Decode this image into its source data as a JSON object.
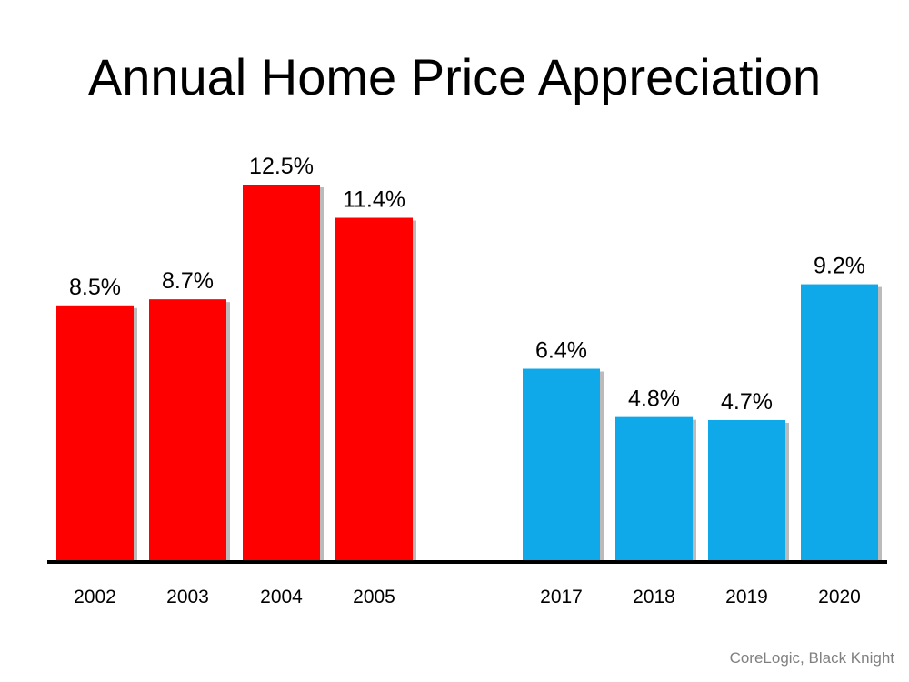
{
  "chart_data": {
    "type": "bar",
    "title": "Annual Home Price Appreciation",
    "categories": [
      "2002",
      "2003",
      "2004",
      "2005",
      "2017",
      "2018",
      "2019",
      "2020"
    ],
    "values": [
      8.5,
      8.7,
      12.5,
      11.4,
      6.4,
      4.8,
      4.7,
      9.2
    ],
    "data_labels": [
      "8.5%",
      "8.7%",
      "12.5%",
      "11.4%",
      "6.4%",
      "4.8%",
      "4.7%",
      "9.2%"
    ],
    "bar_colors": [
      "#ff0000",
      "#ff0000",
      "#ff0000",
      "#ff0000",
      "#0fa9e9",
      "#0fa9e9",
      "#0fa9e9",
      "#0fa9e9"
    ],
    "ylim": [
      0,
      12.5
    ],
    "grid": false,
    "y_axis_shown": false,
    "source": "CoreLogic, Black Knight"
  }
}
